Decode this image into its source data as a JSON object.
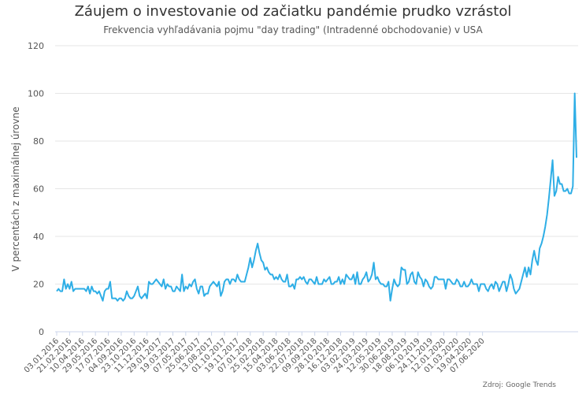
{
  "chart_data": {
    "type": "line",
    "title": "Záujem o investovanie od začiatku pandémie prudko vzrástol",
    "subtitle": "Frekvencia vyhľadávania pojmu \"day trading\" (Intradenné obchodovanie) v USA",
    "ylabel": "V percentách z maximálnej úrovne",
    "xlabel": "",
    "ylim": [
      0,
      120
    ],
    "yticks": [
      0,
      20,
      40,
      60,
      80,
      100,
      120
    ],
    "grid": true,
    "legend": "none",
    "x_tick_labels": [
      "03.01.2016",
      "21.02.2016",
      "10.04.2016",
      "29.05.2016",
      "17.07.2016",
      "04.09.2016",
      "23.10.2016",
      "11.12.2016",
      "29.01.2017",
      "19.03.2017",
      "07.05.2017",
      "25.06.2017",
      "13.08.2017",
      "01.10.2017",
      "19.11.2017",
      "07.01.2018",
      "25.02.2018",
      "15.04.2018",
      "03.06.2018",
      "22.07.2018",
      "09.09.2018",
      "28.10.2018",
      "16.12.2018",
      "03.02.2019",
      "24.03.2019",
      "12.05.2019",
      "30.06.2019",
      "18.08.2019",
      "06.10.2019",
      "24.11.2019",
      "12.01.2020",
      "01.03.2020",
      "19.04.2020",
      "07.06.2020"
    ],
    "series": [
      {
        "color": "#2eaee6",
        "values": [
          17,
          18,
          17,
          17,
          22,
          18,
          20,
          18,
          21,
          17,
          18,
          18,
          18,
          18,
          18,
          18,
          17,
          19,
          16,
          19,
          17,
          17,
          16,
          17,
          15,
          13,
          17,
          18,
          18,
          21,
          14,
          14,
          14,
          13,
          14,
          14,
          13,
          14,
          17,
          15,
          14,
          14,
          15,
          17,
          19,
          15,
          14,
          15,
          16,
          14,
          21,
          20,
          20,
          21,
          22,
          21,
          20,
          19,
          22,
          18,
          20,
          19,
          19,
          17,
          17,
          19,
          18,
          17,
          24,
          17,
          19,
          18,
          20,
          19,
          21,
          22,
          18,
          16,
          19,
          19,
          15,
          16,
          16,
          19,
          20,
          21,
          20,
          19,
          21,
          15,
          17,
          21,
          22,
          22,
          20,
          22,
          22,
          21,
          24,
          22,
          21,
          21,
          21,
          24,
          27,
          31,
          27,
          30,
          34,
          37,
          33,
          30,
          29,
          26,
          27,
          25,
          24,
          24,
          22,
          23,
          22,
          24,
          22,
          21,
          21,
          24,
          19,
          19,
          20,
          18,
          22,
          22,
          23,
          22,
          23,
          21,
          20,
          22,
          22,
          21,
          20,
          23,
          20,
          20,
          20,
          22,
          21,
          22,
          23,
          20,
          20,
          21,
          21,
          23,
          20,
          22,
          20,
          24,
          23,
          22,
          22,
          24,
          20,
          25,
          20,
          20,
          22,
          23,
          25,
          21,
          22,
          24,
          29,
          22,
          23,
          21,
          20,
          20,
          19,
          19,
          21,
          13,
          18,
          22,
          20,
          19,
          20,
          27,
          26,
          26,
          20,
          21,
          24,
          25,
          21,
          20,
          25,
          23,
          22,
          19,
          22,
          21,
          19,
          18,
          19,
          23,
          23,
          22,
          22,
          22,
          22,
          18,
          22,
          22,
          21,
          20,
          20,
          22,
          21,
          19,
          19,
          21,
          19,
          19,
          20,
          22,
          20,
          20,
          20,
          17,
          20,
          20,
          20,
          18,
          17,
          19,
          20,
          18,
          21,
          20,
          17,
          19,
          21,
          21,
          17,
          20,
          24,
          22,
          18,
          16,
          17,
          18,
          21,
          24,
          27,
          23,
          27,
          24,
          30,
          34,
          30,
          28,
          35,
          37,
          40,
          44,
          49,
          56,
          64,
          72,
          57,
          59,
          65,
          62,
          62,
          59,
          59,
          60,
          58,
          58,
          61,
          100,
          73
        ]
      }
    ],
    "source": "Zdroj: Google Trends"
  }
}
